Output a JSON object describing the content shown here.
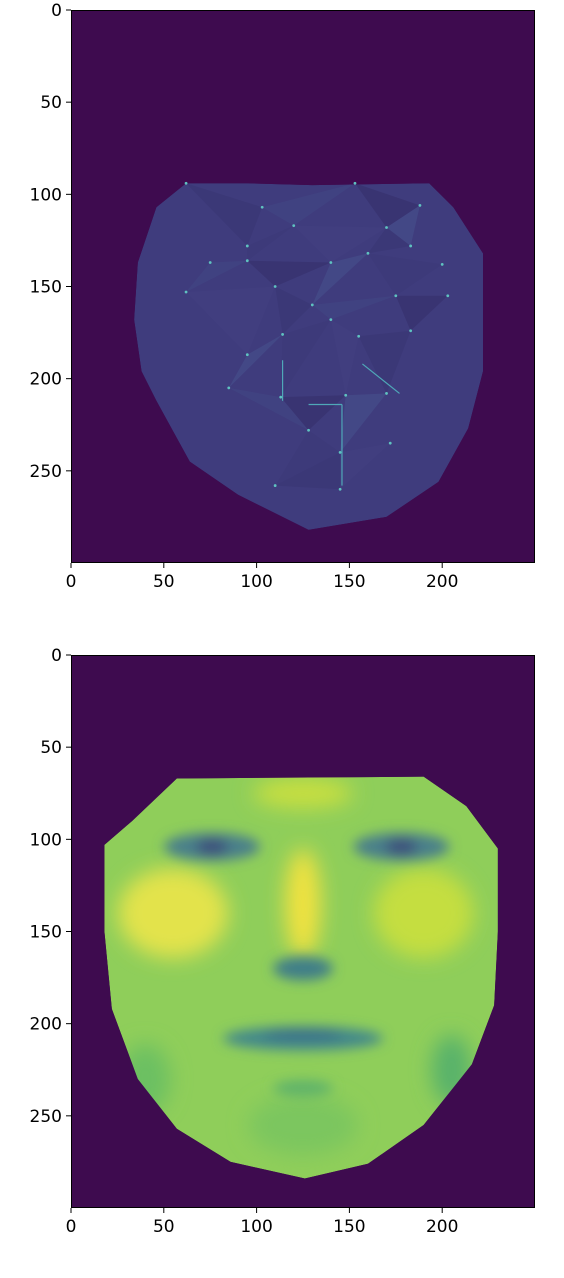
{
  "chart_data": [
    {
      "type": "heatmap",
      "title": "",
      "xlabel": "",
      "ylabel": "",
      "xlim": [
        0,
        250
      ],
      "ylim": [
        300,
        0
      ],
      "x_ticks": [
        "0",
        "50",
        "100",
        "150",
        "200"
      ],
      "y_ticks": [
        "0",
        "50",
        "100",
        "150",
        "200",
        "250"
      ],
      "background_color": "#3e0b4f",
      "colormap": "viridis",
      "grid": false,
      "legend": "none",
      "face_outline": [
        [
          62,
          94
        ],
        [
          95,
          94
        ],
        [
          130,
          95
        ],
        [
          193,
          94
        ],
        [
          206,
          107
        ],
        [
          222,
          132
        ],
        [
          222,
          196
        ],
        [
          214,
          227
        ],
        [
          198,
          256
        ],
        [
          170,
          275
        ],
        [
          128,
          282
        ],
        [
          90,
          263
        ],
        [
          64,
          245
        ],
        [
          46,
          212
        ],
        [
          38,
          196
        ],
        [
          34,
          168
        ],
        [
          36,
          137
        ],
        [
          46,
          107
        ]
      ],
      "landmarks": [
        [
          62,
          94
        ],
        [
          103,
          107
        ],
        [
          153,
          94
        ],
        [
          188,
          106
        ],
        [
          95,
          128
        ],
        [
          120,
          117
        ],
        [
          170,
          118
        ],
        [
          183,
          128
        ],
        [
          75,
          137
        ],
        [
          95,
          136
        ],
        [
          140,
          137
        ],
        [
          160,
          132
        ],
        [
          200,
          138
        ],
        [
          62,
          153
        ],
        [
          110,
          150
        ],
        [
          130,
          160
        ],
        [
          175,
          155
        ],
        [
          203,
          155
        ],
        [
          95,
          187
        ],
        [
          114,
          176
        ],
        [
          140,
          168
        ],
        [
          155,
          177
        ],
        [
          183,
          174
        ],
        [
          85,
          205
        ],
        [
          113,
          210
        ],
        [
          148,
          209
        ],
        [
          170,
          208
        ],
        [
          128,
          228
        ],
        [
          145,
          240
        ],
        [
          110,
          258
        ],
        [
          145,
          260
        ],
        [
          172,
          235
        ]
      ]
    },
    {
      "type": "heatmap",
      "title": "",
      "xlabel": "",
      "ylabel": "",
      "xlim": [
        0,
        250
      ],
      "ylim": [
        300,
        0
      ],
      "x_ticks": [
        "0",
        "50",
        "100",
        "150",
        "200"
      ],
      "y_ticks": [
        "0",
        "50",
        "100",
        "150",
        "200",
        "250"
      ],
      "background_color": "#3e0b4f",
      "colormap": "viridis",
      "grid": false,
      "legend": "none",
      "face_outline": [
        [
          57,
          67
        ],
        [
          190,
          66
        ],
        [
          213,
          82
        ],
        [
          230,
          105
        ],
        [
          230,
          150
        ],
        [
          228,
          190
        ],
        [
          216,
          222
        ],
        [
          190,
          255
        ],
        [
          160,
          276
        ],
        [
          126,
          284
        ],
        [
          86,
          275
        ],
        [
          57,
          257
        ],
        [
          36,
          230
        ],
        [
          22,
          192
        ],
        [
          18,
          150
        ],
        [
          18,
          103
        ],
        [
          33,
          90
        ]
      ],
      "features": {
        "left_eye": [
          76,
          104
        ],
        "right_eye": [
          178,
          104
        ],
        "nose_bridge": [
          125,
          120
        ],
        "left_cheek": [
          55,
          140
        ],
        "right_cheek": [
          190,
          140
        ],
        "nose_base": [
          125,
          170
        ],
        "mouth_left": [
          80,
          204
        ],
        "mouth_right": [
          175,
          204
        ],
        "mouth_center": [
          125,
          212
        ],
        "chin": [
          125,
          265
        ]
      }
    }
  ]
}
